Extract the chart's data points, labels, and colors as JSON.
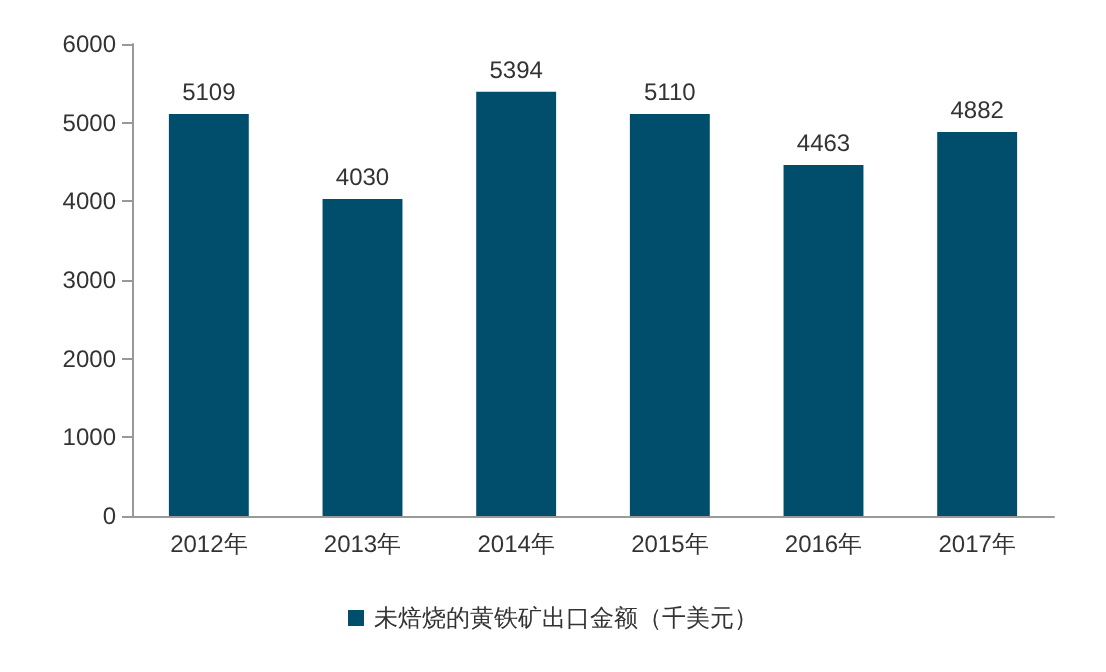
{
  "chart_data": {
    "type": "bar",
    "categories": [
      "2012年",
      "2013年",
      "2014年",
      "2015年",
      "2016年",
      "2017年"
    ],
    "series": [
      {
        "name": "未焙烧的黄铁矿出口金额（千美元）",
        "color": "#004e6c",
        "values": [
          5109,
          4030,
          5394,
          5110,
          4463,
          4882
        ]
      }
    ],
    "ylim": [
      0,
      6000
    ],
    "yticks": [
      0,
      1000,
      2000,
      3000,
      4000,
      5000,
      6000
    ],
    "grid": false,
    "legend": "bottom",
    "data_labels": true
  }
}
